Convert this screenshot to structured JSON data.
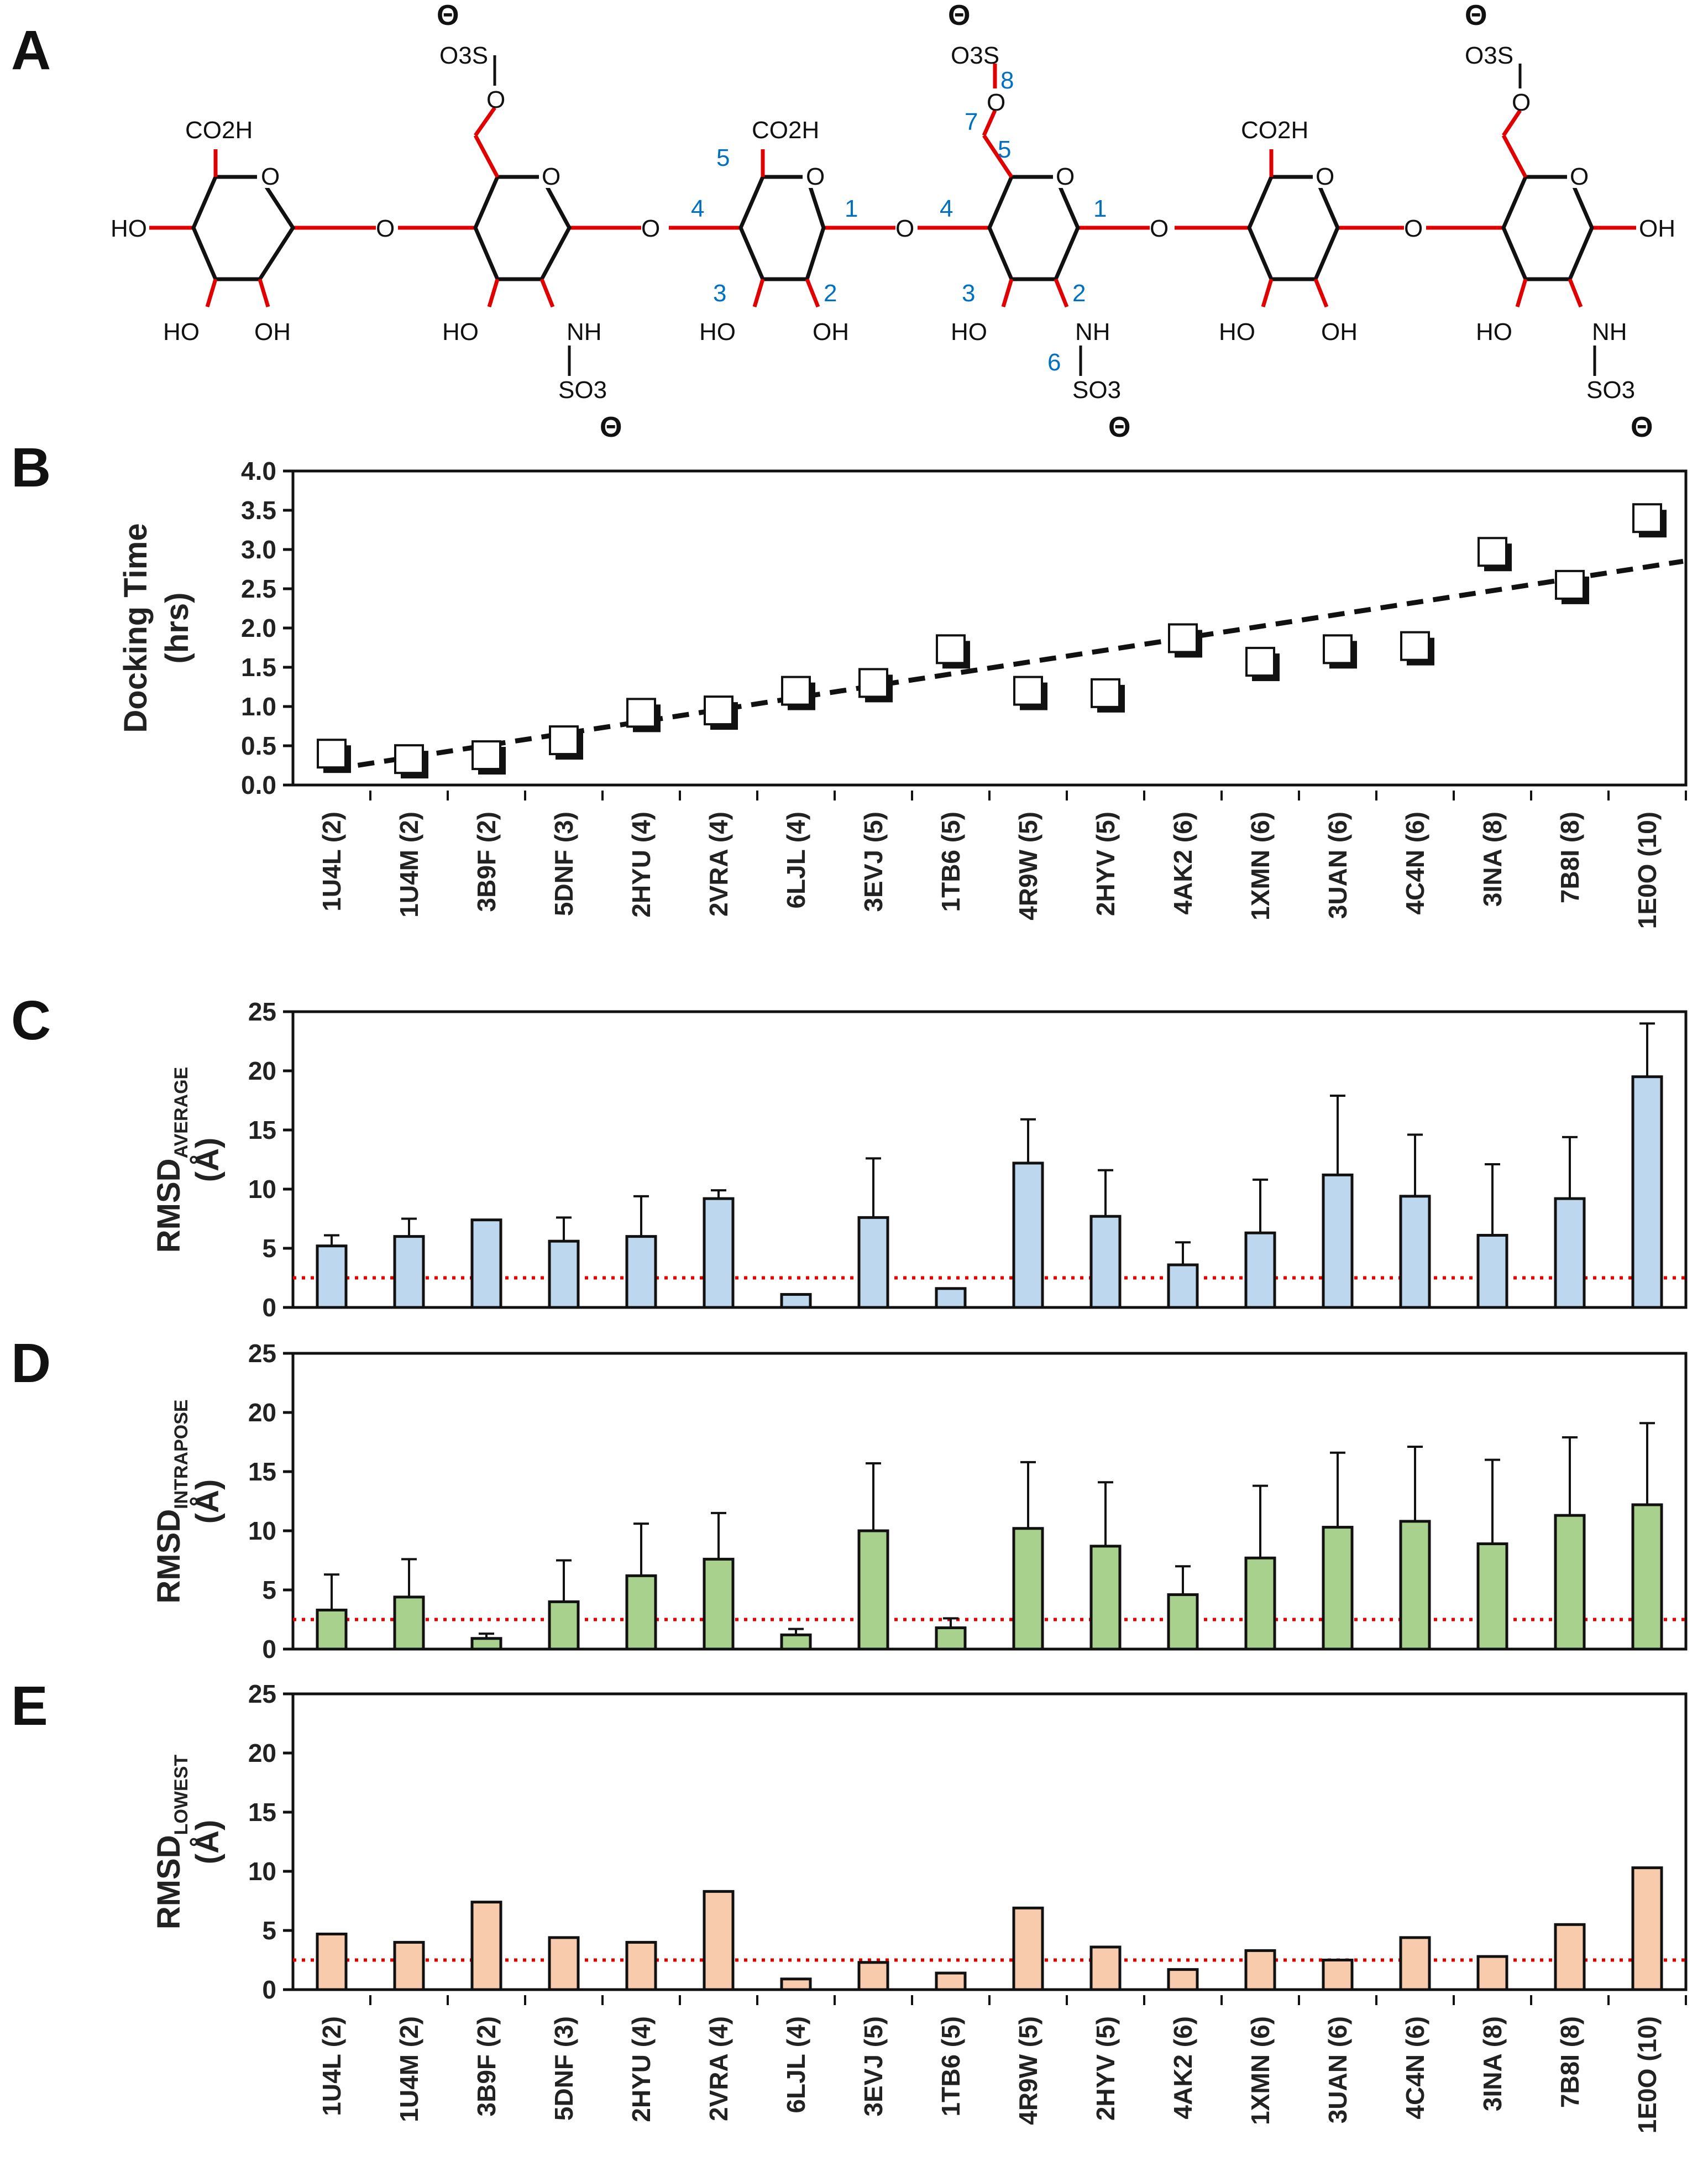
{
  "figure": {
    "panel_labels": [
      "A",
      "B",
      "C",
      "D",
      "E"
    ]
  },
  "structure": {
    "groups": {
      "co2h": "CO2H",
      "ho": "HO",
      "oh": "OH",
      "o": "O",
      "nh": "NH",
      "so3": "SO3",
      "o3s": "O3S",
      "charge": "Θ"
    },
    "position_numbers": [
      "1",
      "2",
      "3",
      "4",
      "5",
      "1",
      "2",
      "3",
      "4",
      "5",
      "6",
      "7",
      "8"
    ]
  },
  "chart_data": [
    {
      "panel": "B",
      "type": "scatter",
      "ylabel": "Docking Time",
      "ylabel_line2": "(hrs)",
      "yticks": [
        "0.0",
        "0.5",
        "1.0",
        "1.5",
        "2.0",
        "2.5",
        "3.0",
        "3.5",
        "4.0"
      ],
      "ylim": [
        0,
        4
      ],
      "categories": [
        "1U4L (2)",
        "1U4M (2)",
        "3B9F (2)",
        "5DNF (3)",
        "2HYU (4)",
        "2VRA (4)",
        "6LJL (4)",
        "3EVJ (5)",
        "1TB6 (5)",
        "4R9W (5)",
        "2HYV (5)",
        "4AK2 (6)",
        "1XMN (6)",
        "3UAN (6)",
        "4C4N (6)",
        "3INA (8)",
        "7B8I (8)",
        "1E0O (10)"
      ],
      "values": [
        0.4,
        0.33,
        0.38,
        0.57,
        0.92,
        0.95,
        1.2,
        1.3,
        1.73,
        1.2,
        1.17,
        1.87,
        1.57,
        1.73,
        1.77,
        2.97,
        2.55,
        3.4
      ],
      "trendline": {
        "style": "dashed",
        "start": 0.2,
        "end": 2.85
      }
    },
    {
      "panel": "C",
      "type": "bar",
      "ylabel": "RMSD",
      "ylabel_sub": "AVERAGE",
      "ylabel_line2": "(Å)",
      "yticks": [
        "0",
        "5",
        "10",
        "15",
        "20",
        "25"
      ],
      "ylim": [
        0,
        25
      ],
      "bar_color": "#BDD7EE",
      "values": [
        5.2,
        6.0,
        7.4,
        5.6,
        6.0,
        9.2,
        1.1,
        7.6,
        1.6,
        12.2,
        7.7,
        3.6,
        6.3,
        11.2,
        9.4,
        6.1,
        9.2,
        19.5
      ],
      "errors": [
        0.9,
        1.5,
        0.0,
        2.0,
        3.4,
        0.7,
        0.0,
        5.0,
        0.0,
        3.7,
        3.9,
        1.9,
        4.5,
        6.7,
        5.2,
        6.0,
        5.2,
        4.5
      ],
      "threshold": 2.5
    },
    {
      "panel": "D",
      "type": "bar",
      "ylabel": "RMSD",
      "ylabel_sub": "INTRAPOSE",
      "ylabel_line2": "(Å)",
      "yticks": [
        "0",
        "5",
        "10",
        "15",
        "20",
        "25"
      ],
      "ylim": [
        0,
        25
      ],
      "bar_color": "#A9D18E",
      "values": [
        3.3,
        4.4,
        0.9,
        4.0,
        6.2,
        7.6,
        1.2,
        10.0,
        1.8,
        10.2,
        8.7,
        4.6,
        7.7,
        10.3,
        10.8,
        8.9,
        11.3,
        12.2
      ],
      "errors": [
        3.0,
        3.2,
        0.4,
        3.5,
        4.4,
        3.9,
        0.5,
        5.7,
        0.8,
        5.6,
        5.4,
        2.4,
        6.1,
        6.3,
        6.3,
        7.1,
        6.6,
        6.9
      ],
      "threshold": 2.5
    },
    {
      "panel": "E",
      "type": "bar",
      "ylabel": "RMSD",
      "ylabel_sub": "LOWEST",
      "ylabel_line2": "(Å)",
      "yticks": [
        "0",
        "5",
        "10",
        "15",
        "20",
        "25"
      ],
      "ylim": [
        0,
        25
      ],
      "bar_color": "#F8CBAD",
      "values": [
        4.7,
        4.0,
        7.4,
        4.4,
        4.0,
        8.3,
        0.9,
        2.3,
        1.4,
        6.9,
        3.6,
        1.7,
        3.3,
        2.5,
        4.4,
        2.8,
        5.5,
        10.3
      ],
      "threshold": 2.5
    }
  ]
}
